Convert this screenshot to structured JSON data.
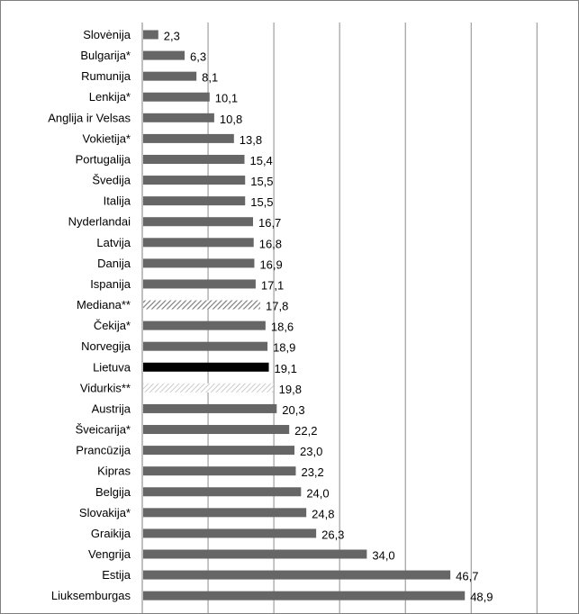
{
  "chart_data": {
    "type": "bar",
    "orientation": "horizontal",
    "categories": [
      "Slovėnija",
      "Bulgarija*",
      "Rumunija",
      "Lenkija*",
      "Anglija ir Velsas",
      "Vokietija*",
      "Portugalija",
      "Švedija",
      "Italija",
      "Nyderlandai",
      "Latvija",
      "Danija",
      "Ispanija",
      "Mediana**",
      "Čekija*",
      "Norvegija",
      "Lietuva",
      "Vidurkis**",
      "Austrija",
      "Šveicarija*",
      "Prancūzija",
      "Kipras",
      "Belgija",
      "Slovakija*",
      "Graikija",
      "Vengrija",
      "Estija",
      "Liuksemburgas"
    ],
    "values": [
      2.3,
      6.3,
      8.1,
      10.1,
      10.8,
      13.8,
      15.4,
      15.5,
      15.5,
      16.7,
      16.8,
      16.9,
      17.1,
      17.8,
      18.6,
      18.9,
      19.1,
      19.8,
      20.3,
      22.2,
      23.0,
      23.2,
      24.0,
      24.8,
      26.3,
      34.0,
      46.7,
      48.9
    ],
    "value_labels": [
      "2,3",
      "6,3",
      "8,1",
      "10,1",
      "10,8",
      "13,8",
      "15,4",
      "15,5",
      "15,5",
      "16,7",
      "16,8",
      "16,9",
      "17,1",
      "17,8",
      "18,6",
      "18,9",
      "19,1",
      "19,8",
      "20,3",
      "22,2",
      "23,0",
      "23,2",
      "24,0",
      "24,8",
      "26,3",
      "34,0",
      "46,7",
      "48,9"
    ],
    "bar_styles": [
      "solid",
      "solid",
      "solid",
      "solid",
      "solid",
      "solid",
      "solid",
      "solid",
      "solid",
      "solid",
      "solid",
      "solid",
      "solid",
      "hatched",
      "solid",
      "solid",
      "highlight",
      "light-hatched",
      "solid",
      "solid",
      "solid",
      "solid",
      "solid",
      "solid",
      "solid",
      "solid",
      "solid",
      "solid"
    ],
    "xlim": [
      0,
      60
    ],
    "x_gridlines": [
      10,
      20,
      30,
      40,
      50,
      60
    ],
    "grid": true,
    "title": "",
    "xlabel": "",
    "ylabel": "",
    "colors": {
      "bar": "#666666",
      "highlight": "#000000",
      "hatch": "#7f7f7f",
      "light_hatch": "#bfbfbf",
      "grid": "#8c8c8c",
      "axis": "#7f7f7f"
    }
  }
}
